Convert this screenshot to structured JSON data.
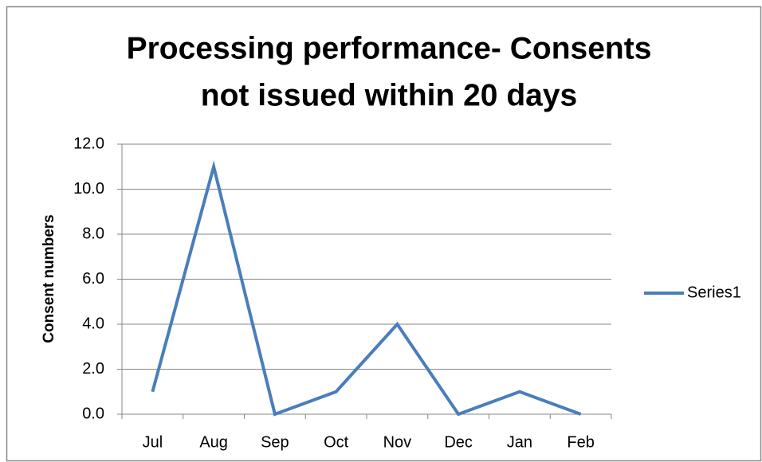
{
  "chart_data": {
    "type": "line",
    "title": [
      "Processing performance- Consents",
      "not issued within 20 days"
    ],
    "y_axis_label": "Consent numbers",
    "categories": [
      "Jul",
      "Aug",
      "Sep",
      "Oct",
      "Nov",
      "Dec",
      "Jan",
      "Feb"
    ],
    "series": [
      {
        "name": "Series1",
        "color": "#4a7ebb",
        "values": [
          1,
          11,
          0,
          1,
          4,
          0,
          1,
          0
        ]
      }
    ],
    "ylim": [
      0,
      12
    ],
    "yticks": [
      {
        "value": 0,
        "label": "0.0"
      },
      {
        "value": 2,
        "label": "2.0"
      },
      {
        "value": 4,
        "label": "4.0"
      },
      {
        "value": 6,
        "label": "6.0"
      },
      {
        "value": 8,
        "label": "8.0"
      },
      {
        "value": 10,
        "label": "10.0"
      },
      {
        "value": 12,
        "label": "12.0"
      }
    ],
    "grid": true,
    "legend": "right"
  }
}
